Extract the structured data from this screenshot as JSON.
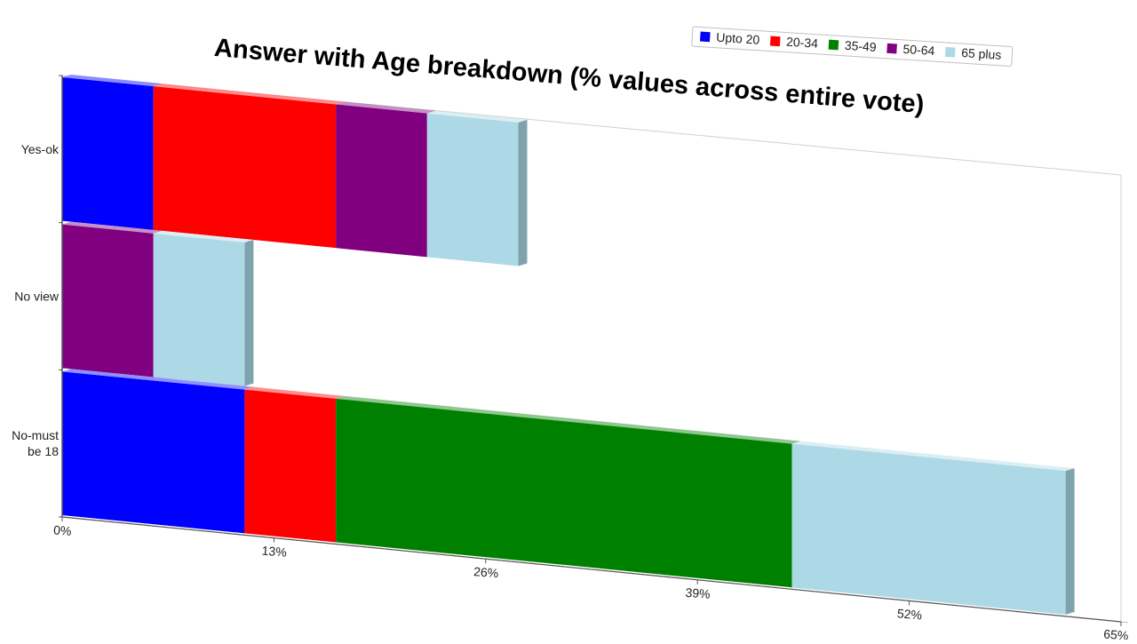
{
  "chart_data": {
    "type": "bar",
    "orientation": "horizontal",
    "stacked": true,
    "title": "Answer with Age breakdown (% values across entire vote)",
    "categories": [
      "Yes-ok",
      "No view",
      "No-must be 18"
    ],
    "category_label_lines": [
      [
        "Yes-ok"
      ],
      [
        "No view"
      ],
      [
        "No-must",
        "be 18"
      ]
    ],
    "series": [
      {
        "name": "Upto 20",
        "color": "#0000ff",
        "values": [
          5.6,
          0,
          11.2
        ]
      },
      {
        "name": "20-34",
        "color": "#ff0000",
        "values": [
          11.2,
          0,
          5.6
        ]
      },
      {
        "name": "35-49",
        "color": "#008000",
        "values": [
          0,
          0,
          28.0
        ]
      },
      {
        "name": "50-64",
        "color": "#800080",
        "values": [
          5.6,
          5.6,
          0
        ]
      },
      {
        "name": "65 plus",
        "color": "#add8e6",
        "values": [
          5.6,
          5.6,
          16.8
        ]
      }
    ],
    "xlim": [
      0,
      65
    ],
    "x_ticks": [
      "0%",
      "13%",
      "26%",
      "39%",
      "52%",
      "65%"
    ],
    "legend_position": "top-right",
    "xlabel": "",
    "ylabel": ""
  }
}
